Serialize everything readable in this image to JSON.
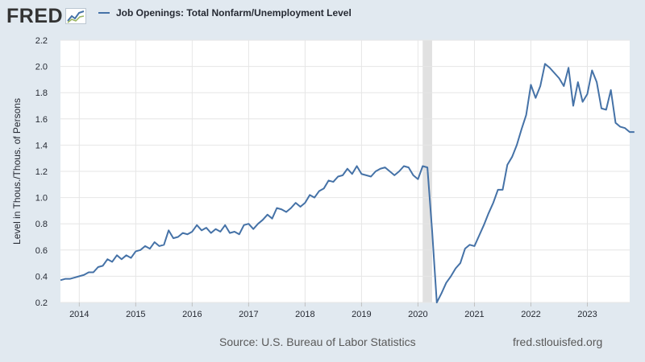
{
  "header": {
    "logo_text": "FRED",
    "series_title": "Job Openings: Total Nonfarm/Unemployment Level"
  },
  "footer": {
    "source": "Source: U.S. Bureau of Labor Statistics",
    "site": "fred.stlouisfed.org"
  },
  "colors": {
    "series": "#4572a7",
    "recession": "#e1e1e1",
    "grid": "#e6e6e6",
    "background": "#e1e9f0",
    "plot_bg": "#ffffff"
  },
  "chart_data": {
    "type": "line",
    "title": "Job Openings: Total Nonfarm/Unemployment Level",
    "xlabel": "",
    "ylabel": "Level in Thous./Thous. of Persons",
    "ylim": [
      0.2,
      2.2
    ],
    "xlim": [
      2013.667,
      2023.75
    ],
    "yticks": [
      0.2,
      0.4,
      0.6,
      0.8,
      1.0,
      1.2,
      1.4,
      1.6,
      1.8,
      2.0,
      2.2
    ],
    "ytick_labels": [
      "0.2",
      "0.4",
      "0.6",
      "0.8",
      "1.0",
      "1.2",
      "1.4",
      "1.6",
      "1.8",
      "2.0",
      "2.2"
    ],
    "xticks": [
      2014,
      2015,
      2016,
      2017,
      2018,
      2019,
      2020,
      2021,
      2022,
      2023
    ],
    "xtick_labels": [
      "2014",
      "2015",
      "2016",
      "2017",
      "2018",
      "2019",
      "2020",
      "2021",
      "2022",
      "2023"
    ],
    "grid": true,
    "recession": [
      2020.083,
      2020.25
    ],
    "series": [
      {
        "name": "Job Openings: Total Nonfarm/Unemployment Level",
        "start": "2013-09",
        "frequency": "monthly",
        "values": [
          0.37,
          0.38,
          0.38,
          0.39,
          0.4,
          0.41,
          0.43,
          0.43,
          0.47,
          0.48,
          0.53,
          0.51,
          0.56,
          0.53,
          0.56,
          0.54,
          0.59,
          0.6,
          0.63,
          0.61,
          0.66,
          0.63,
          0.64,
          0.75,
          0.69,
          0.7,
          0.73,
          0.72,
          0.74,
          0.79,
          0.75,
          0.77,
          0.73,
          0.76,
          0.74,
          0.79,
          0.73,
          0.74,
          0.72,
          0.79,
          0.8,
          0.76,
          0.8,
          0.83,
          0.87,
          0.84,
          0.92,
          0.91,
          0.89,
          0.92,
          0.96,
          0.93,
          0.96,
          1.02,
          1.0,
          1.05,
          1.07,
          1.13,
          1.12,
          1.16,
          1.17,
          1.22,
          1.18,
          1.24,
          1.18,
          1.17,
          1.16,
          1.2,
          1.22,
          1.23,
          1.2,
          1.17,
          1.2,
          1.24,
          1.23,
          1.17,
          1.14,
          1.24,
          1.23,
          0.75,
          0.2,
          0.27,
          0.35,
          0.4,
          0.46,
          0.5,
          0.61,
          0.64,
          0.63,
          0.71,
          0.79,
          0.88,
          0.96,
          1.06,
          1.06,
          1.25,
          1.31,
          1.4,
          1.52,
          1.63,
          1.86,
          1.76,
          1.85,
          2.02,
          1.99,
          1.95,
          1.91,
          1.85,
          1.99,
          1.7,
          1.88,
          1.73,
          1.79,
          1.97,
          1.88,
          1.68,
          1.67,
          1.82,
          1.57,
          1.54,
          1.53,
          1.5,
          1.5
        ]
      }
    ]
  }
}
